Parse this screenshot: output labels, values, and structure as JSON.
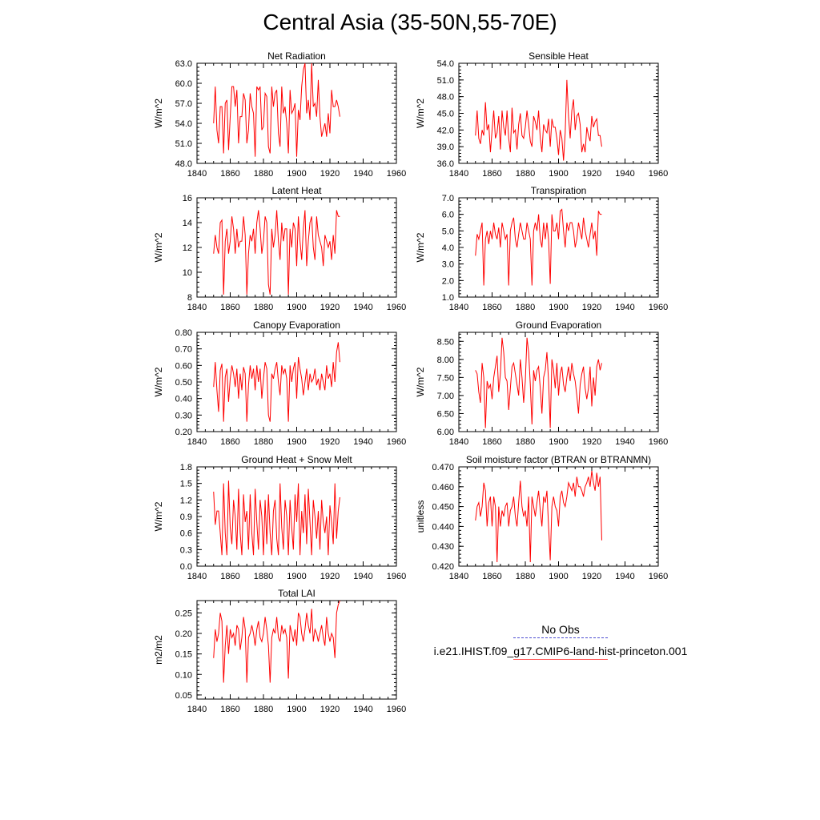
{
  "title": "Central Asia (35-50N,55-70E)",
  "legend": {
    "obs_label": "No Obs",
    "model_label": "i.e21.IHIST.f09_g17.CMIP6-land-hist-princeton.001",
    "obs_color": "#3333cc",
    "model_color": "#ff0000"
  },
  "chart_data": [
    {
      "type": "line",
      "title": "Net Radiation",
      "ylabel": "W/m^2",
      "xlim": [
        1840,
        1960
      ],
      "ylim": [
        48.0,
        63.0
      ],
      "xticks": [
        1840,
        1860,
        1880,
        1900,
        1920,
        1940,
        1960
      ],
      "yticks": [
        "48.0",
        "51.0",
        "54.0",
        "57.0",
        "60.0",
        "63.0"
      ],
      "series": [
        {
          "color": "#ff0000",
          "x_start": 1850,
          "values": [
            54.0,
            59.5,
            53.0,
            51.0,
            56.5,
            56.5,
            49.5,
            57.0,
            57.5,
            50.0,
            55.0,
            59.5,
            59.5,
            56.5,
            59.0,
            51.0,
            55.0,
            55.0,
            58.5,
            57.5,
            51.0,
            53.0,
            58.5,
            56.5,
            55.5,
            49.0,
            59.5,
            59.0,
            59.5,
            53.0,
            53.5,
            58.5,
            58.0,
            50.5,
            49.5,
            59.5,
            56.5,
            58.5,
            59.0,
            52.5,
            50.5,
            59.5,
            55.5,
            56.5,
            54.0,
            49.5,
            59.0,
            55.5,
            56.0,
            57.0,
            49.0,
            56.0,
            54.5,
            59.5,
            62.0,
            63.0,
            55.5,
            57.5,
            54.5,
            63.0,
            56.5,
            57.0,
            55.0,
            60.5,
            55.0,
            52.0,
            53.0,
            54.0,
            52.0,
            55.5,
            52.5,
            59.0,
            56.5,
            56.5,
            57.5,
            56.5,
            55.0
          ]
        }
      ]
    },
    {
      "type": "line",
      "title": "Sensible Heat",
      "ylabel": "W/m^2",
      "xlim": [
        1840,
        1960
      ],
      "ylim": [
        36.0,
        54.0
      ],
      "xticks": [
        1840,
        1860,
        1880,
        1900,
        1920,
        1940,
        1960
      ],
      "yticks": [
        "36.0",
        "39.0",
        "42.0",
        "45.0",
        "48.0",
        "51.0",
        "54.0"
      ],
      "series": [
        {
          "color": "#ff0000",
          "x_start": 1850,
          "values": [
            41.0,
            45.5,
            40.5,
            39.5,
            42.0,
            41.0,
            47.0,
            42.0,
            43.0,
            38.0,
            42.0,
            45.5,
            40.5,
            41.5,
            44.5,
            38.5,
            45.5,
            42.5,
            41.0,
            45.5,
            40.5,
            38.0,
            46.0,
            41.5,
            42.0,
            38.5,
            43.0,
            45.0,
            41.0,
            40.5,
            42.5,
            45.5,
            43.0,
            40.0,
            39.0,
            44.5,
            43.5,
            42.0,
            45.5,
            40.5,
            38.0,
            43.0,
            42.0,
            41.5,
            44.0,
            39.0,
            44.0,
            42.5,
            42.5,
            40.5,
            37.5,
            42.0,
            40.5,
            36.5,
            41.5,
            51.0,
            44.5,
            40.5,
            45.5,
            47.5,
            42.0,
            44.5,
            45.0,
            43.0,
            38.0,
            39.5,
            38.0,
            42.5,
            41.0,
            40.0,
            44.5,
            42.5,
            43.5,
            44.0,
            41.0,
            41.0,
            39.0
          ]
        }
      ]
    },
    {
      "type": "line",
      "title": "Latent Heat",
      "ylabel": "W/m^2",
      "xlim": [
        1840,
        1960
      ],
      "ylim": [
        8,
        16
      ],
      "xticks": [
        1840,
        1860,
        1880,
        1900,
        1920,
        1940,
        1960
      ],
      "yticks": [
        "8",
        "10",
        "12",
        "14",
        "16"
      ],
      "series": [
        {
          "color": "#ff0000",
          "x_start": 1850,
          "values": [
            11.5,
            13.0,
            12.0,
            11.5,
            14.0,
            14.2,
            8.2,
            12.5,
            13.5,
            11.5,
            12.5,
            14.5,
            13.5,
            11.5,
            13.5,
            12.0,
            12.5,
            12.5,
            14.5,
            13.0,
            8.2,
            11.5,
            13.0,
            12.5,
            13.5,
            11.5,
            14.0,
            15.0,
            13.5,
            11.5,
            12.5,
            14.5,
            14.0,
            9.0,
            8.2,
            13.5,
            12.0,
            13.0,
            15.0,
            12.5,
            11.0,
            14.0,
            12.5,
            13.5,
            13.5,
            8.2,
            13.5,
            12.0,
            14.0,
            13.5,
            10.5,
            14.5,
            12.5,
            11.0,
            13.5,
            15.0,
            10.5,
            12.5,
            14.0,
            14.5,
            12.0,
            11.0,
            14.5,
            13.0,
            12.5,
            12.0,
            10.5,
            13.0,
            12.5,
            12.0,
            12.5,
            11.0,
            13.0,
            11.5,
            15.0,
            14.5,
            14.5
          ]
        }
      ]
    },
    {
      "type": "line",
      "title": "Transpiration",
      "ylabel": "W/m^2",
      "xlim": [
        1840,
        1960
      ],
      "ylim": [
        1.0,
        7.0
      ],
      "xticks": [
        1840,
        1860,
        1880,
        1900,
        1920,
        1940,
        1960
      ],
      "yticks": [
        "1.0",
        "2.0",
        "3.0",
        "4.0",
        "5.0",
        "6.0",
        "7.0"
      ],
      "series": [
        {
          "color": "#ff0000",
          "x_start": 1850,
          "values": [
            3.5,
            4.8,
            4.5,
            5.0,
            5.5,
            1.7,
            4.5,
            5.0,
            4.2,
            5.0,
            4.5,
            5.5,
            4.8,
            4.5,
            5.2,
            4.0,
            5.5,
            5.0,
            4.5,
            4.8,
            1.7,
            5.0,
            5.5,
            5.8,
            4.5,
            4.0,
            4.8,
            5.5,
            5.0,
            4.5,
            4.5,
            5.5,
            5.0,
            4.5,
            1.7,
            5.0,
            5.5,
            5.0,
            6.0,
            4.5,
            4.0,
            5.5,
            4.5,
            5.5,
            4.5,
            1.8,
            6.0,
            5.0,
            5.0,
            5.5,
            4.5,
            6.2,
            6.3,
            5.0,
            4.0,
            5.5,
            5.0,
            5.5,
            5.5,
            5.0,
            4.0,
            4.5,
            5.5,
            5.0,
            4.5,
            5.8,
            5.0,
            4.5,
            4.0,
            4.8,
            5.5,
            4.5,
            5.0,
            3.5,
            6.2,
            6.0,
            6.0
          ]
        }
      ]
    },
    {
      "type": "line",
      "title": "Canopy Evaporation",
      "ylabel": "W/m^2",
      "xlim": [
        1840,
        1960
      ],
      "ylim": [
        0.2,
        0.8
      ],
      "xticks": [
        1840,
        1860,
        1880,
        1900,
        1920,
        1940,
        1960
      ],
      "yticks": [
        "0.20",
        "0.30",
        "0.40",
        "0.50",
        "0.60",
        "0.70",
        "0.80"
      ],
      "series": [
        {
          "color": "#ff0000",
          "x_start": 1850,
          "values": [
            0.47,
            0.62,
            0.45,
            0.32,
            0.57,
            0.61,
            0.26,
            0.53,
            0.58,
            0.38,
            0.52,
            0.6,
            0.55,
            0.47,
            0.58,
            0.4,
            0.55,
            0.45,
            0.59,
            0.55,
            0.26,
            0.48,
            0.6,
            0.52,
            0.58,
            0.45,
            0.6,
            0.5,
            0.58,
            0.4,
            0.52,
            0.62,
            0.58,
            0.3,
            0.26,
            0.55,
            0.52,
            0.58,
            0.62,
            0.5,
            0.42,
            0.6,
            0.55,
            0.58,
            0.52,
            0.26,
            0.6,
            0.5,
            0.58,
            0.62,
            0.4,
            0.65,
            0.58,
            0.52,
            0.42,
            0.5,
            0.58,
            0.45,
            0.55,
            0.5,
            0.52,
            0.58,
            0.48,
            0.52,
            0.45,
            0.55,
            0.5,
            0.45,
            0.6,
            0.52,
            0.55,
            0.47,
            0.62,
            0.5,
            0.68,
            0.74,
            0.62
          ]
        }
      ]
    },
    {
      "type": "line",
      "title": "Ground Evaporation",
      "ylabel": "W/m^2",
      "xlim": [
        1840,
        1960
      ],
      "ylim": [
        6.0,
        8.75
      ],
      "xticks": [
        1840,
        1860,
        1880,
        1900,
        1920,
        1940,
        1960
      ],
      "yticks": [
        "6.00",
        "6.50",
        "7.00",
        "7.50",
        "8.00",
        "8.50"
      ],
      "series": [
        {
          "color": "#ff0000",
          "x_start": 1850,
          "values": [
            7.7,
            7.6,
            7.1,
            6.8,
            7.9,
            7.5,
            6.1,
            7.4,
            7.2,
            7.3,
            6.9,
            7.5,
            7.8,
            8.1,
            7.1,
            7.6,
            8.6,
            8.2,
            7.5,
            7.4,
            6.6,
            7.2,
            7.8,
            7.9,
            7.6,
            7.3,
            7.0,
            8.0,
            7.5,
            6.8,
            7.4,
            8.6,
            8.2,
            7.3,
            6.2,
            7.7,
            7.4,
            7.7,
            7.8,
            7.2,
            6.5,
            7.5,
            7.7,
            8.2,
            7.4,
            6.1,
            8.0,
            7.7,
            7.2,
            7.9,
            7.0,
            7.6,
            7.8,
            7.3,
            7.1,
            7.5,
            7.8,
            7.4,
            7.9,
            7.6,
            7.4,
            7.0,
            6.5,
            7.3,
            7.6,
            7.8,
            7.2,
            6.9,
            7.2,
            7.8,
            6.7,
            7.5,
            7.0,
            7.8,
            8.0,
            7.7,
            7.9
          ]
        }
      ]
    },
    {
      "type": "line",
      "title": "Ground Heat + Snow Melt",
      "ylabel": "W/m^2",
      "xlim": [
        1840,
        1960
      ],
      "ylim": [
        0.0,
        1.8
      ],
      "xticks": [
        1840,
        1860,
        1880,
        1900,
        1920,
        1940,
        1960
      ],
      "yticks": [
        "0.0",
        "0.3",
        "0.6",
        "0.9",
        "1.2",
        "1.5",
        "1.8"
      ],
      "series": [
        {
          "color": "#ff0000",
          "x_start": 1850,
          "values": [
            1.35,
            0.75,
            1.0,
            1.0,
            0.6,
            0.2,
            1.5,
            0.6,
            0.2,
            1.55,
            0.7,
            0.4,
            1.2,
            0.9,
            0.3,
            1.4,
            0.6,
            0.2,
            1.3,
            0.8,
            1.0,
            0.3,
            1.3,
            0.6,
            0.2,
            1.4,
            0.8,
            0.3,
            1.2,
            0.9,
            0.2,
            1.2,
            0.4,
            1.3,
            0.6,
            0.2,
            1.0,
            1.2,
            0.5,
            0.2,
            1.5,
            0.7,
            0.3,
            1.2,
            0.9,
            0.2,
            1.2,
            0.7,
            0.3,
            1.3,
            0.8,
            1.5,
            0.2,
            1.0,
            0.6,
            1.3,
            0.4,
            1.4,
            0.8,
            0.2,
            1.2,
            0.9,
            0.5,
            1.0,
            0.3,
            1.2,
            0.8,
            0.6,
            0.9,
            0.2,
            1.1,
            0.8,
            0.4,
            1.5,
            0.5,
            1.0,
            1.25
          ]
        }
      ]
    },
    {
      "type": "line",
      "title": "Soil moisture factor (BTRAN or BTRANMN)",
      "ylabel": "unitless",
      "xlim": [
        1840,
        1960
      ],
      "ylim": [
        0.42,
        0.47
      ],
      "xticks": [
        1840,
        1860,
        1880,
        1900,
        1920,
        1940,
        1960
      ],
      "yticks": [
        "0.420",
        "0.430",
        "0.440",
        "0.450",
        "0.460",
        "0.470"
      ],
      "series": [
        {
          "color": "#ff0000",
          "x_start": 1850,
          "values": [
            0.443,
            0.45,
            0.452,
            0.445,
            0.45,
            0.462,
            0.458,
            0.44,
            0.452,
            0.455,
            0.44,
            0.455,
            0.45,
            0.422,
            0.45,
            0.44,
            0.448,
            0.445,
            0.45,
            0.452,
            0.44,
            0.448,
            0.45,
            0.455,
            0.445,
            0.44,
            0.452,
            0.463,
            0.45,
            0.445,
            0.448,
            0.44,
            0.455,
            0.422,
            0.455,
            0.45,
            0.445,
            0.452,
            0.458,
            0.448,
            0.44,
            0.455,
            0.452,
            0.458,
            0.44,
            0.423,
            0.45,
            0.455,
            0.45,
            0.448,
            0.44,
            0.455,
            0.458,
            0.452,
            0.45,
            0.455,
            0.462,
            0.46,
            0.458,
            0.462,
            0.455,
            0.465,
            0.46,
            0.46,
            0.458,
            0.455,
            0.46,
            0.462,
            0.465,
            0.46,
            0.468,
            0.462,
            0.458,
            0.467,
            0.46,
            0.465,
            0.433
          ]
        }
      ]
    },
    {
      "type": "line",
      "title": "Total LAI",
      "ylabel": "m2/m2",
      "xlim": [
        1840,
        1960
      ],
      "ylim": [
        0.04,
        0.28
      ],
      "xticks": [
        1840,
        1860,
        1880,
        1900,
        1920,
        1940,
        1960
      ],
      "yticks": [
        "0.05",
        "0.10",
        "0.15",
        "0.20",
        "0.25"
      ],
      "series": [
        {
          "color": "#ff0000",
          "x_start": 1850,
          "values": [
            0.14,
            0.21,
            0.18,
            0.2,
            0.25,
            0.23,
            0.08,
            0.17,
            0.22,
            0.15,
            0.21,
            0.19,
            0.2,
            0.17,
            0.22,
            0.21,
            0.16,
            0.19,
            0.24,
            0.21,
            0.08,
            0.19,
            0.2,
            0.22,
            0.2,
            0.17,
            0.21,
            0.23,
            0.19,
            0.18,
            0.2,
            0.24,
            0.21,
            0.17,
            0.08,
            0.19,
            0.21,
            0.2,
            0.24,
            0.19,
            0.18,
            0.22,
            0.2,
            0.21,
            0.19,
            0.09,
            0.22,
            0.2,
            0.18,
            0.21,
            0.17,
            0.25,
            0.24,
            0.2,
            0.18,
            0.21,
            0.25,
            0.22,
            0.2,
            0.26,
            0.18,
            0.21,
            0.2,
            0.18,
            0.2,
            0.22,
            0.19,
            0.17,
            0.24,
            0.2,
            0.18,
            0.2,
            0.19,
            0.14,
            0.25,
            0.27,
            0.28
          ]
        }
      ]
    }
  ]
}
